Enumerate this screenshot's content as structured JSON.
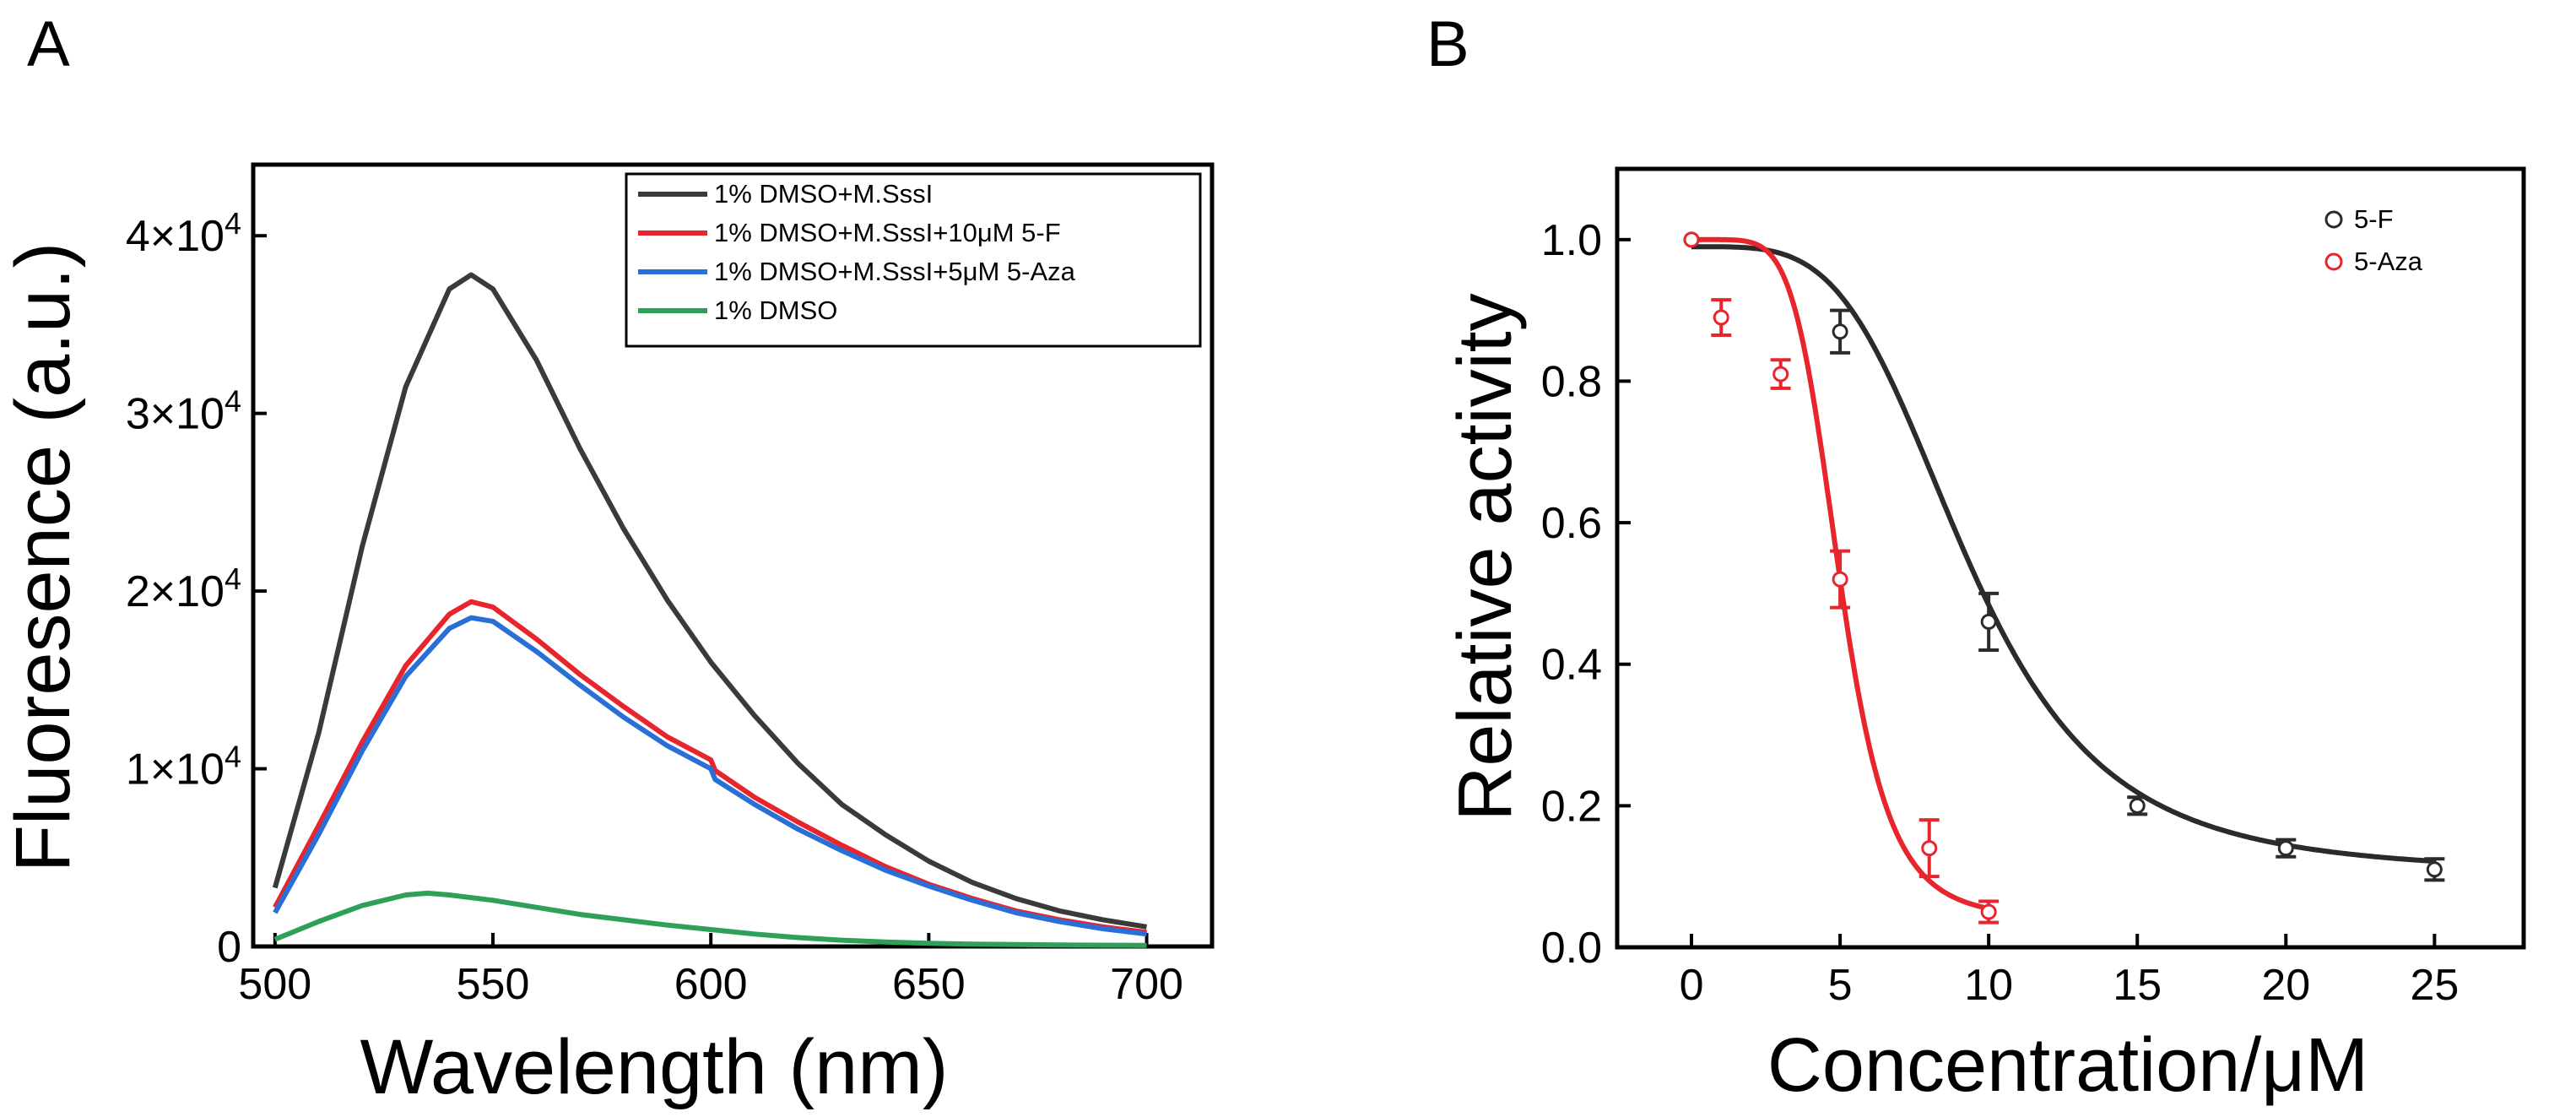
{
  "chart_data": [
    {
      "panel": "A",
      "type": "line",
      "xlabel": "Wavelength (nm)",
      "ylabel": "Fluoresence (a.u.)",
      "xlim": [
        495,
        715
      ],
      "ylim": [
        0,
        44000
      ],
      "xticks": [
        500,
        550,
        600,
        650,
        700
      ],
      "yticks": [
        {
          "value": 0,
          "mantissa": "0",
          "exp": ""
        },
        {
          "value": 10000,
          "mantissa": "1×10",
          "exp": "4"
        },
        {
          "value": 20000,
          "mantissa": "2×10",
          "exp": "4"
        },
        {
          "value": 30000,
          "mantissa": "3×10",
          "exp": "4"
        },
        {
          "value": 40000,
          "mantissa": "4×10",
          "exp": "4"
        }
      ],
      "legend_position": "top-right",
      "series": [
        {
          "name": "1% DMSO+M.SssI",
          "color": "#3a3a3a",
          "x": [
            500,
            510,
            520,
            530,
            540,
            545,
            550,
            560,
            570,
            580,
            590,
            600,
            610,
            620,
            630,
            640,
            650,
            660,
            670,
            680,
            690,
            700
          ],
          "y": [
            3300,
            12000,
            22500,
            31500,
            37000,
            37800,
            37000,
            33000,
            28000,
            23500,
            19500,
            16000,
            13000,
            10300,
            8000,
            6300,
            4800,
            3600,
            2700,
            2000,
            1500,
            1100
          ]
        },
        {
          "name": "1% DMSO+M.SssI+10μM 5-F",
          "color": "#e8242c",
          "x": [
            500,
            510,
            520,
            530,
            540,
            545,
            550,
            560,
            570,
            580,
            590,
            600,
            601,
            610,
            620,
            630,
            640,
            650,
            660,
            670,
            680,
            690,
            700
          ],
          "y": [
            2200,
            6800,
            11500,
            15800,
            18700,
            19400,
            19100,
            17300,
            15300,
            13500,
            11800,
            10500,
            9900,
            8400,
            7000,
            5700,
            4500,
            3500,
            2700,
            2000,
            1500,
            1100,
            800
          ]
        },
        {
          "name": "1% DMSO+M.SssI+5μM 5-Aza",
          "color": "#2a6fd6",
          "x": [
            500,
            510,
            520,
            530,
            540,
            545,
            550,
            560,
            570,
            580,
            590,
            600,
            601,
            610,
            620,
            630,
            640,
            650,
            660,
            670,
            680,
            690,
            700
          ],
          "y": [
            1900,
            6300,
            11000,
            15200,
            17900,
            18500,
            18300,
            16600,
            14700,
            12900,
            11300,
            10000,
            9400,
            8000,
            6600,
            5400,
            4300,
            3400,
            2600,
            1900,
            1400,
            1000,
            700
          ]
        },
        {
          "name": "1% DMSO",
          "color": "#2ea05a",
          "x": [
            500,
            510,
            520,
            530,
            535,
            540,
            550,
            560,
            570,
            580,
            590,
            600,
            610,
            620,
            630,
            640,
            650,
            660,
            680,
            700
          ],
          "y": [
            400,
            1400,
            2300,
            2900,
            3000,
            2900,
            2600,
            2200,
            1800,
            1500,
            1200,
            950,
            700,
            500,
            350,
            250,
            180,
            130,
            80,
            60
          ]
        }
      ]
    },
    {
      "panel": "B",
      "type": "scatter",
      "xlabel": "Concentration/μM",
      "ylabel": "Relative activity",
      "xlim": [
        -2.5,
        28
      ],
      "ylim": [
        0,
        1.1
      ],
      "xticks": [
        0,
        5,
        10,
        15,
        20,
        25
      ],
      "yticks": [
        "0.0",
        "0.2",
        "0.4",
        "0.6",
        "0.8",
        "1.0"
      ],
      "legend_position": "top-right",
      "series": [
        {
          "name": "5-F",
          "color": "#2b2b2b",
          "points": [
            {
              "x": 0,
              "y": 1.0,
              "err": 0.0
            },
            {
              "x": 5,
              "y": 0.87,
              "err": 0.03
            },
            {
              "x": 10,
              "y": 0.46,
              "err": 0.04
            },
            {
              "x": 15,
              "y": 0.2,
              "err": 0.012
            },
            {
              "x": 20,
              "y": 0.14,
              "err": 0.012
            },
            {
              "x": 25,
              "y": 0.11,
              "err": 0.015
            }
          ],
          "fit": {
            "top": 0.99,
            "bottom": 0.105,
            "ic50": 9.3,
            "hill": 4.0
          }
        },
        {
          "name": "5-Aza",
          "color": "#e8242c",
          "points": [
            {
              "x": 0,
              "y": 1.0,
              "err": 0.0
            },
            {
              "x": 1,
              "y": 0.89,
              "err": 0.025
            },
            {
              "x": 3,
              "y": 0.81,
              "err": 0.02
            },
            {
              "x": 5,
              "y": 0.52,
              "err": 0.04
            },
            {
              "x": 8,
              "y": 0.14,
              "err": 0.04
            },
            {
              "x": 10,
              "y": 0.05,
              "err": 0.015
            }
          ],
          "fit": {
            "top": 1.0,
            "bottom": 0.04,
            "ic50": 5.0,
            "hill": 6.0
          }
        }
      ]
    }
  ],
  "panels": {
    "A": "A",
    "B": "B"
  }
}
